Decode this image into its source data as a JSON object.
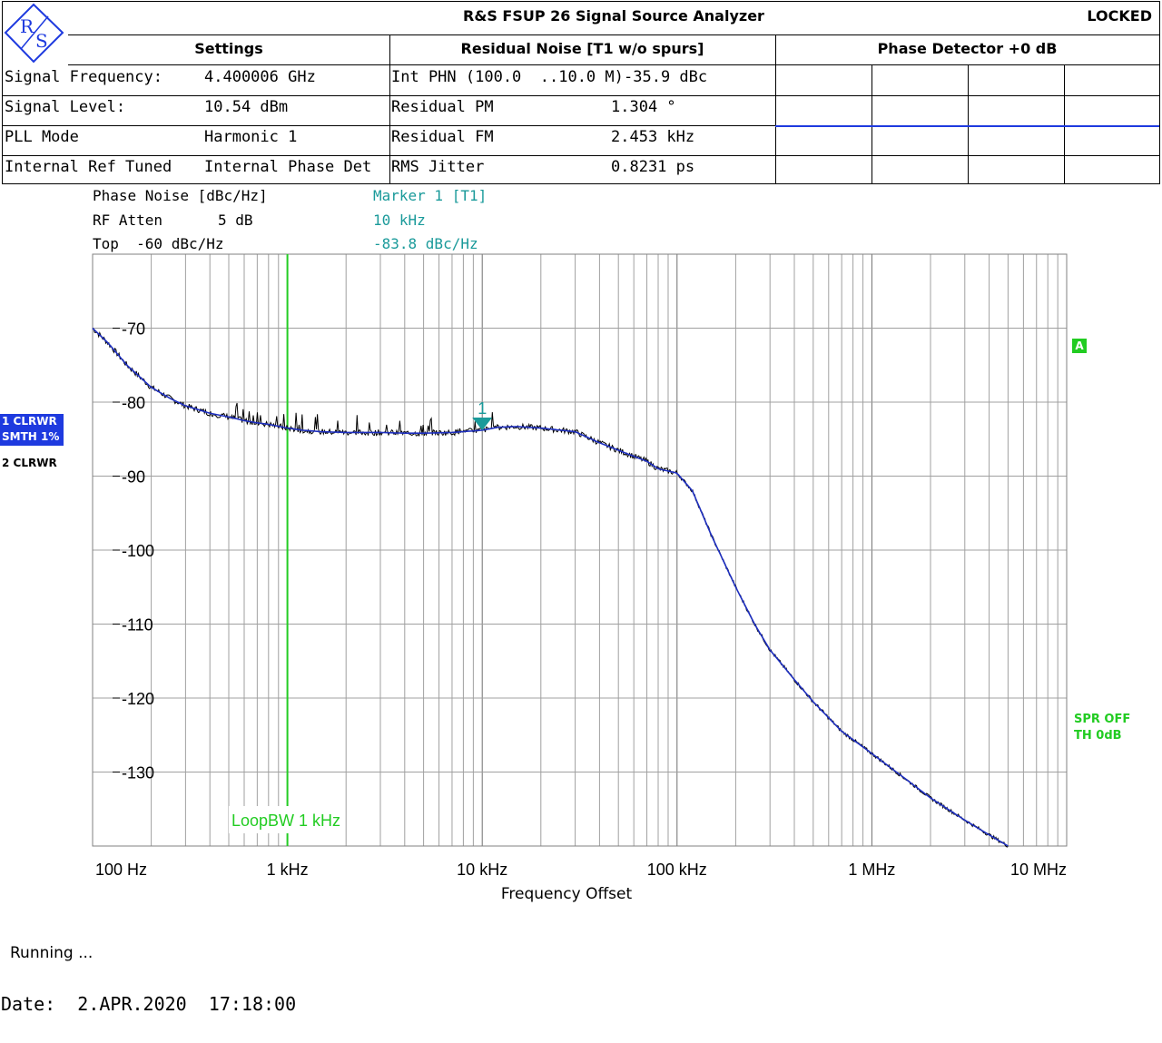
{
  "header": {
    "title": "R&S FSUP 26 Signal Source Analyzer",
    "lock_status": "LOCKED",
    "logo_text": "R&S",
    "sections": {
      "settings": "Settings",
      "residual": "Residual Noise [T1 w/o spurs]",
      "phase_detector": "Phase Detector +0 dB"
    },
    "settings_rows": [
      {
        "label": "Signal Frequency:",
        "value": "4.400006 GHz"
      },
      {
        "label": "Signal Level:",
        "value": "10.54 dBm"
      },
      {
        "label": "PLL Mode",
        "value": "Harmonic 1"
      },
      {
        "label": "Internal Ref Tuned",
        "value": "Internal Phase Det"
      }
    ],
    "residual_rows": [
      {
        "label": "Int PHN (100.0  ..10.0 M)",
        "value": "-35.9 dBc"
      },
      {
        "label": "Residual PM",
        "value": "1.304 °"
      },
      {
        "label": "Residual FM",
        "value": "2.453 kHz"
      },
      {
        "label": "RMS Jitter",
        "value": "0.8231 ps"
      }
    ]
  },
  "plot_info": {
    "left": [
      "Phase Noise [dBc/Hz]",
      "RF Atten",
      "5 dB",
      "Top  -60 dBc/Hz"
    ],
    "marker": [
      "Marker 1 [T1]",
      "10 kHz",
      "-83.8 dBc/Hz"
    ]
  },
  "traces": {
    "trace1_line1": "1 CLRWR",
    "trace1_line2": "SMTH 1%",
    "trace2": "2 CLRWR",
    "badge": "A",
    "spr_line1": "SPR OFF",
    "spr_line2": "TH 0dB"
  },
  "status": "Running ...",
  "date_line": "Date:  2.APR.2020  17:18:00",
  "colors": {
    "smoothed_trace": "#1e2fc0",
    "raw_trace": "#000000",
    "marker": "#1a9a9a",
    "loop_bw_line": "#22cc22",
    "grid": "#a0a0a0"
  },
  "chart_data": {
    "type": "line",
    "xscale": "log",
    "x_range_hz": [
      100,
      10000000
    ],
    "ylim": [
      -140,
      -60
    ],
    "y_ticks": [
      -70,
      -80,
      -90,
      -100,
      -110,
      -120,
      -130
    ],
    "x_tick_labels": [
      "100 Hz",
      "1 kHz",
      "10 kHz",
      "100 kHz",
      "1 MHz",
      "10 MHz"
    ],
    "x_tick_values": [
      100,
      1000,
      10000,
      100000,
      1000000,
      10000000
    ],
    "xlabel": "Frequency Offset",
    "ylabel": "Phase Noise [dBc/Hz]",
    "grid": true,
    "series": [
      {
        "name": "1 CLRWR",
        "x": [
          100,
          120,
          150,
          200,
          250,
          300,
          400,
          500,
          600,
          700,
          800,
          1000,
          1200,
          1500,
          2000,
          3000,
          4000,
          5000,
          7000,
          10000,
          12000,
          15000,
          20000,
          30000,
          40000,
          50000,
          70000,
          80000,
          100000,
          120000,
          150000,
          200000,
          250000,
          300000,
          400000,
          500000,
          700000,
          1000000,
          1500000,
          2000000,
          3000000,
          4000000,
          5000000
        ],
        "values": [
          -70,
          -72,
          -75,
          -78,
          -79.5,
          -80.5,
          -81.5,
          -82,
          -82.5,
          -82.8,
          -83,
          -83.5,
          -83.8,
          -84,
          -84.1,
          -84.1,
          -84.2,
          -84.2,
          -84.1,
          -83.8,
          -83.4,
          -83.3,
          -83.5,
          -84,
          -85.5,
          -86.5,
          -88,
          -89,
          -89.6,
          -92,
          -98,
          -105,
          -110,
          -113.5,
          -117.5,
          -120.5,
          -124.5,
          -127.5,
          -131,
          -133.5,
          -136.5,
          -138.5,
          -140
        ]
      }
    ],
    "markers": [
      {
        "label": "1",
        "x": 10000,
        "y": -83.8
      }
    ],
    "annotations": [
      {
        "text": "LoopBW 1 kHz",
        "x": 1000
      }
    ]
  }
}
